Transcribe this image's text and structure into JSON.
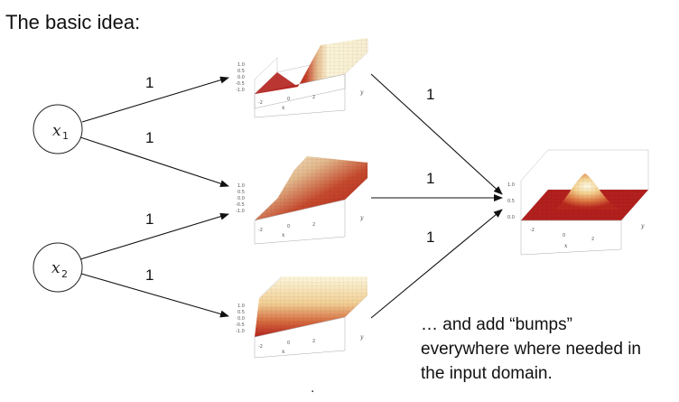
{
  "title": "The basic idea:",
  "caption": [
    "… and add “bumps”",
    "everywhere where needed in",
    "the input domain."
  ],
  "inputs": [
    {
      "label": "x",
      "subscript": "1"
    },
    {
      "label": "x",
      "subscript": "2"
    }
  ],
  "input_weights": [
    "1",
    "1",
    "1",
    "1"
  ],
  "output_weights": [
    "1",
    "1",
    "1"
  ],
  "plot_ticks": {
    "z": [
      "1.0",
      "0.5",
      "0.0",
      "-0.5",
      "-1.0"
    ],
    "x": [
      "-2",
      "0",
      "2"
    ],
    "output_z": [
      "1.0",
      "0.5",
      "0.0"
    ],
    "x_axis": "x",
    "y_axis": "y"
  },
  "colors": {
    "low": "#b3201d",
    "mid": "#d8663c",
    "high": "#fdf7de",
    "line": "#111111"
  },
  "footnote": "."
}
